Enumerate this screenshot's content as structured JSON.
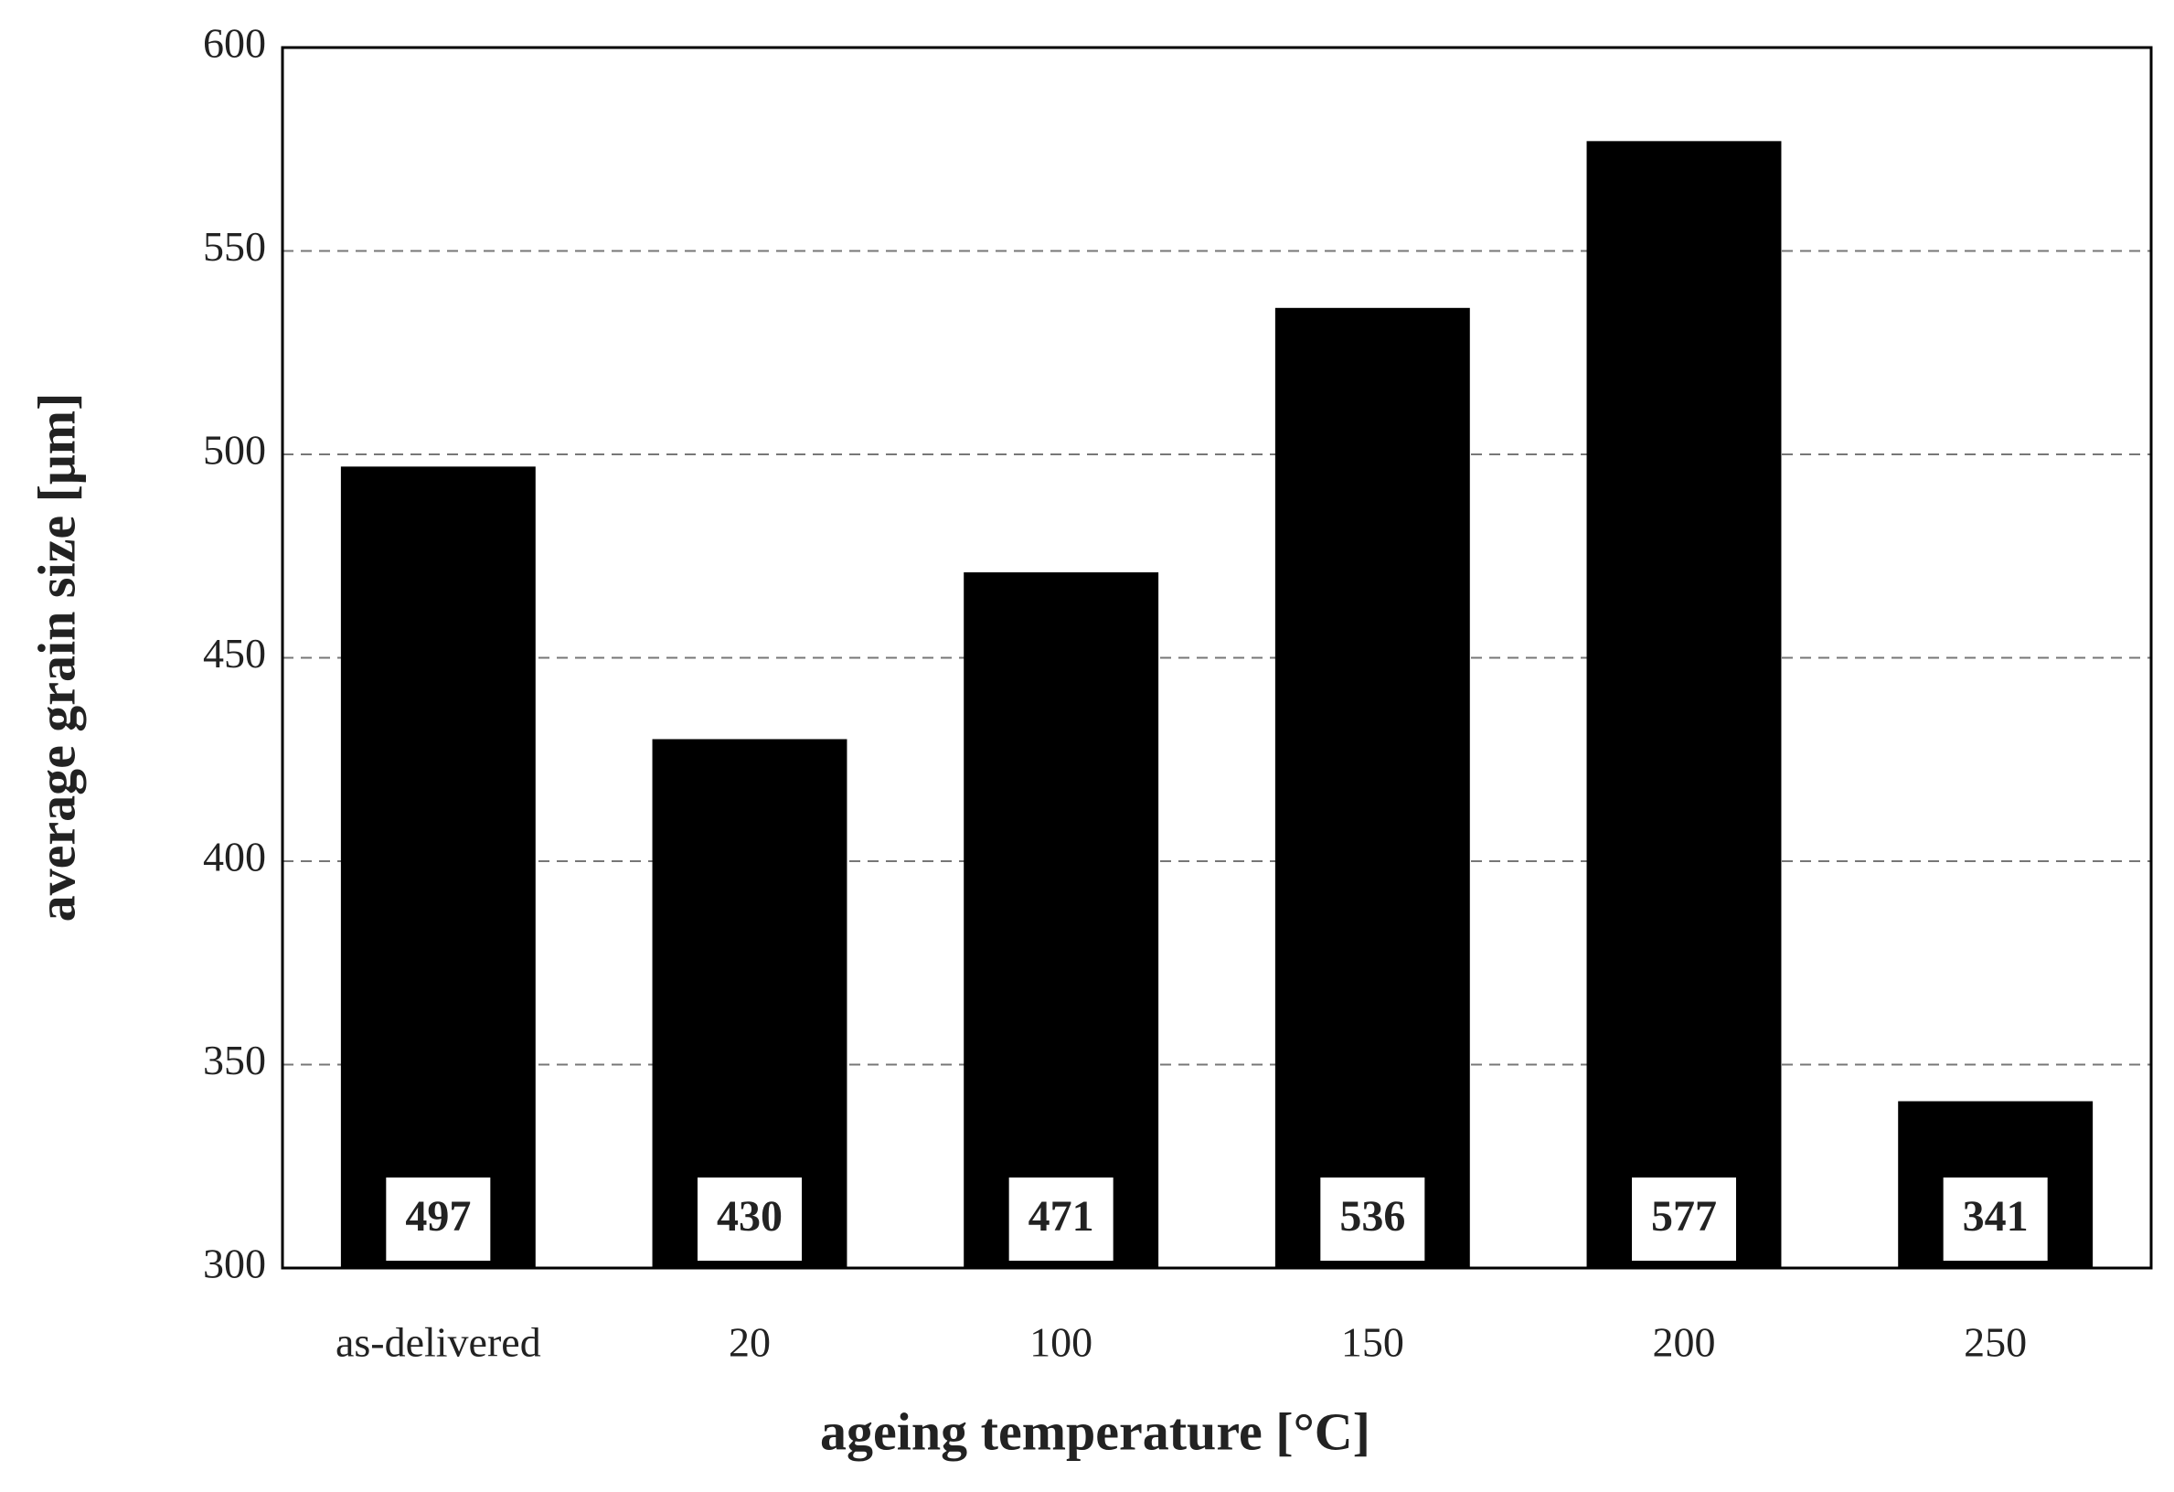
{
  "chart_data": {
    "type": "bar",
    "x_label": "ageing temperature [°C]",
    "y_label": "average grain size [μm]",
    "categories": [
      "as-delivered",
      "20",
      "100",
      "150",
      "200",
      "250"
    ],
    "values": [
      497,
      430,
      471,
      536,
      577,
      341
    ],
    "color": "#000000",
    "ylim": [
      300,
      600
    ],
    "yticks": [
      300,
      350,
      400,
      450,
      500,
      550,
      600
    ],
    "grid": true
  }
}
